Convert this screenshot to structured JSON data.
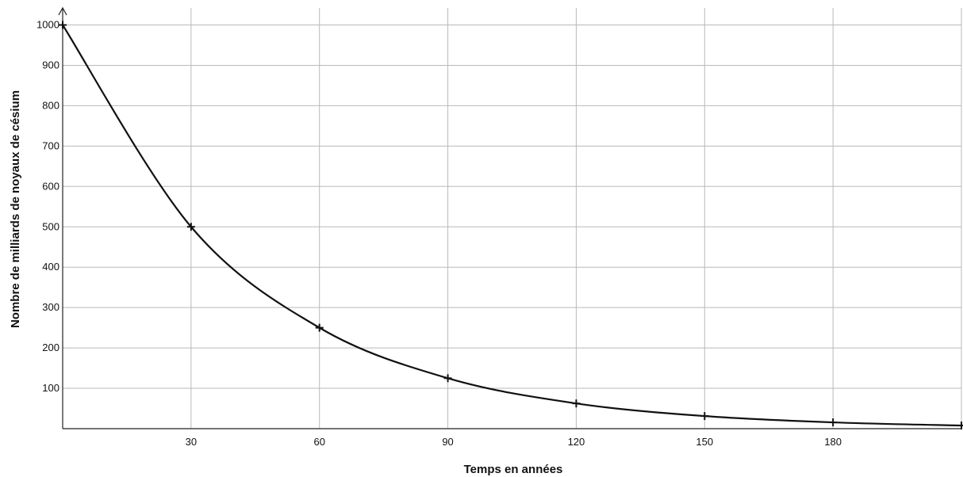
{
  "chart_data": {
    "type": "line",
    "xlabel": "Temps en années",
    "ylabel": "Nombre de milliards de noyaux de césium",
    "xlim": [
      0,
      210
    ],
    "ylim": [
      0,
      1000
    ],
    "x_ticks": [
      30,
      60,
      90,
      120,
      150,
      180
    ],
    "y_ticks": [
      100,
      200,
      300,
      400,
      500,
      600,
      700,
      800,
      900,
      1000
    ],
    "grid": true,
    "series": [
      {
        "x": [
          0,
          30,
          60,
          90,
          120,
          150,
          180,
          210
        ],
        "y": [
          1000,
          500,
          250,
          125,
          62.5,
          31.25,
          15.6,
          7.8
        ]
      }
    ],
    "colors": {
      "curve": "#111111",
      "grid": "#b9b9b9"
    }
  }
}
